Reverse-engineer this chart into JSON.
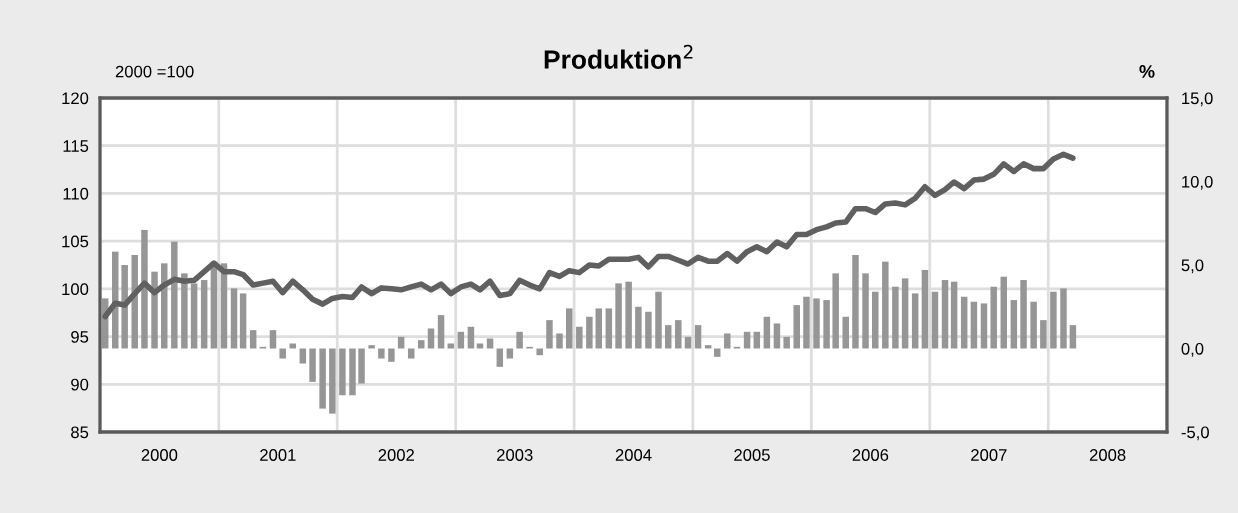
{
  "chart_data": {
    "type": "line",
    "title": "Produktion$^{2}$",
    "ylabel": "2000 =100",
    "y2label": "%",
    "x": [
      "2000-01",
      "2000-02",
      "2000-03",
      "2000-04",
      "2000-05",
      "2000-06",
      "2000-07",
      "2000-08",
      "2000-09",
      "2000-10",
      "2000-11",
      "2000-12",
      "2001-01",
      "2001-02",
      "2001-03",
      "2001-04",
      "2001-05",
      "2001-06",
      "2001-07",
      "2001-08",
      "2001-09",
      "2001-10",
      "2001-11",
      "2001-12",
      "2002-01",
      "2002-02",
      "2002-03",
      "2002-04",
      "2002-05",
      "2002-06",
      "2002-07",
      "2002-08",
      "2002-09",
      "2002-10",
      "2002-11",
      "2002-12",
      "2003-01",
      "2003-02",
      "2003-03",
      "2003-04",
      "2003-05",
      "2003-06",
      "2003-07",
      "2003-08",
      "2003-09",
      "2003-10",
      "2003-11",
      "2003-12",
      "2004-01",
      "2004-02",
      "2004-03",
      "2004-04",
      "2004-05",
      "2004-06",
      "2004-07",
      "2004-08",
      "2004-09",
      "2004-10",
      "2004-11",
      "2004-12",
      "2005-01",
      "2005-02",
      "2005-03",
      "2005-04",
      "2005-05",
      "2005-06",
      "2005-07",
      "2005-08",
      "2005-09",
      "2005-10",
      "2005-11",
      "2005-12",
      "2006-01",
      "2006-02",
      "2006-03",
      "2006-04",
      "2006-05",
      "2006-06",
      "2006-07",
      "2006-08",
      "2006-09",
      "2006-10",
      "2006-11",
      "2006-12",
      "2007-01",
      "2007-02",
      "2007-03",
      "2007-04",
      "2007-05",
      "2007-06",
      "2007-07",
      "2007-08",
      "2007-09",
      "2007-10",
      "2007-11",
      "2007-12",
      "2008-01",
      "2008-02",
      "2008-03"
    ],
    "series": [
      {
        "type": "bar",
        "axis": "y2",
        "color": "#969696",
        "values": [
          3.0,
          5.8,
          5.0,
          5.6,
          7.1,
          4.6,
          5.1,
          6.4,
          4.5,
          3.9,
          4.1,
          5.2,
          5.1,
          3.6,
          3.3,
          1.1,
          0.1,
          1.1,
          -0.6,
          0.3,
          -0.9,
          -2.0,
          -3.6,
          -3.9,
          -2.8,
          -2.8,
          -2.1,
          0.2,
          -0.6,
          -0.8,
          0.7,
          -0.6,
          0.5,
          1.2,
          2.0,
          0.3,
          1.0,
          1.3,
          0.3,
          0.6,
          -1.1,
          -0.6,
          1.0,
          0.1,
          -0.4,
          1.7,
          0.9,
          2.4,
          1.3,
          1.9,
          2.4,
          2.4,
          3.9,
          4.0,
          2.5,
          2.2,
          3.4,
          1.4,
          1.7,
          0.7,
          1.4,
          0.2,
          -0.5,
          0.9,
          0.1,
          1.0,
          1.0,
          1.9,
          1.5,
          0.7,
          2.6,
          3.1,
          3.0,
          2.9,
          4.5,
          1.9,
          5.6,
          4.5,
          3.4,
          5.2,
          3.7,
          4.2,
          3.3,
          4.7,
          3.4,
          4.1,
          4.0,
          3.1,
          2.8,
          2.7,
          3.7,
          4.3,
          2.9,
          4.1,
          2.8,
          1.7,
          3.4,
          3.6,
          1.4
        ]
      },
      {
        "color": "#606060",
        "values": [
          97.1,
          98.5,
          98.3,
          99.5,
          100.6,
          99.6,
          100.4,
          101.0,
          100.8,
          100.9,
          101.8,
          102.7,
          101.8,
          101.8,
          101.5,
          100.4,
          100.6,
          100.8,
          99.6,
          100.8,
          99.9,
          98.9,
          98.4,
          99.0,
          99.2,
          99.1,
          100.2,
          99.5,
          100.1,
          100.0,
          99.9,
          100.2,
          100.5,
          99.9,
          100.5,
          99.5,
          100.2,
          100.5,
          99.9,
          100.8,
          99.3,
          99.5,
          100.9,
          100.4,
          100.0,
          101.7,
          101.3,
          101.9,
          101.7,
          102.5,
          102.4,
          103.1,
          103.1,
          103.1,
          103.3,
          102.3,
          103.4,
          103.4,
          103.0,
          102.6,
          103.3,
          102.9,
          102.9,
          103.7,
          102.9,
          103.9,
          104.4,
          103.9,
          104.9,
          104.4,
          105.7,
          105.7,
          106.2,
          106.5,
          106.9,
          107.0,
          108.4,
          108.4,
          108.0,
          108.9,
          109.0,
          108.8,
          109.5,
          110.7,
          109.8,
          110.4,
          111.2,
          110.5,
          111.4,
          111.5,
          112.0,
          113.1,
          112.3,
          113.1,
          112.6,
          112.6,
          113.6,
          114.1,
          113.7
        ]
      }
    ],
    "xlim": [
      "1999-12-16",
      "2008-12-16"
    ],
    "xticks": [
      {
        "value": "1999-12-16",
        "label": null
      },
      {
        "value": "2000-06-16",
        "label": "2000"
      },
      {
        "value": "2000-12-16",
        "label": null
      },
      {
        "value": "2001-06-16",
        "label": "2001"
      },
      {
        "value": "2001-12-16",
        "label": null
      },
      {
        "value": "2002-06-16",
        "label": "2002"
      },
      {
        "value": "2002-12-16",
        "label": null
      },
      {
        "value": "2003-06-16",
        "label": "2003"
      },
      {
        "value": "2003-12-16",
        "label": null
      },
      {
        "value": "2004-06-16",
        "label": "2004"
      },
      {
        "value": "2004-12-16",
        "label": null
      },
      {
        "value": "2005-06-16",
        "label": "2005"
      },
      {
        "value": "2005-12-16",
        "label": null
      },
      {
        "value": "2006-06-16",
        "label": "2006"
      },
      {
        "value": "2006-12-16",
        "label": null
      },
      {
        "value": "2007-06-16",
        "label": "2007"
      },
      {
        "value": "2007-12-16",
        "label": null
      },
      {
        "value": "2008-06-16",
        "label": "2008"
      },
      {
        "value": "2008-12-16",
        "label": null
      }
    ],
    "ylim": [
      85,
      120
    ],
    "yticks": [
      85,
      90,
      95,
      100,
      105,
      110,
      115,
      120
    ],
    "y2lim": [
      -5,
      15
    ],
    "y2ticks": [
      {
        "value": -5,
        "label": "-5,0"
      },
      {
        "value": 0,
        "label": "0,0"
      },
      {
        "value": 5,
        "label": "5,0"
      },
      {
        "value": 10,
        "label": "10,0"
      },
      {
        "value": 15,
        "label": "15,0"
      }
    ],
    "grid": true,
    "legend": false,
    "line_style": "solid",
    "marker": "none"
  }
}
